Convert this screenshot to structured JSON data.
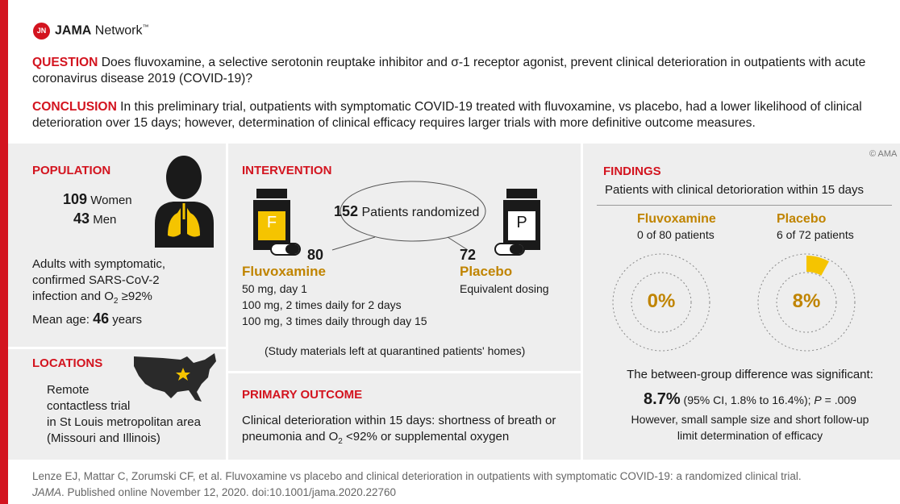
{
  "header": {
    "logo_mark": "JN",
    "brand": "JAMA",
    "brand_suffix": "Network",
    "trademark": "™"
  },
  "question": {
    "label": "QUESTION",
    "text": "Does fluvoxamine, a selective serotonin reuptake inhibitor and σ-1 receptor agonist, prevent clinical deterioration in outpatients with acute coronavirus disease 2019 (COVID-19)?"
  },
  "conclusion": {
    "label": "CONCLUSION",
    "text": "In this preliminary trial, outpatients with symptomatic COVID-19 treated with fluvoxamine, vs placebo, had a lower likelihood of clinical deterioration over 15 days; however, determination of clinical efficacy requires larger trials with more definitive outcome measures."
  },
  "copyright": "© AMA",
  "population": {
    "heading": "POPULATION",
    "women": {
      "count": "109",
      "label": "Women"
    },
    "men": {
      "count": "43",
      "label": "Men"
    },
    "description": {
      "text": "Adults with symptomatic, confirmed SARS-CoV-2 infection and O",
      "subscript": "2",
      "tail": " ≥92%"
    },
    "mean_age": {
      "label": "Mean age:",
      "value": "46",
      "unit": "years"
    }
  },
  "locations": {
    "heading": "LOCATIONS",
    "lines": [
      "Remote",
      "contactless trial",
      "in St Louis metropolitan area",
      "(Missouri and Illinois)"
    ]
  },
  "intervention": {
    "heading": "INTERVENTION",
    "randomized": {
      "count": "152",
      "label": "Patients randomized"
    },
    "fluvoxamine": {
      "bottle": "F",
      "count": "80",
      "name": "Fluvoxamine",
      "dosing": [
        "50 mg, day 1",
        "100 mg, 2 times daily for 2 days",
        "100 mg, 3 times daily through day 15"
      ]
    },
    "placebo": {
      "bottle": "P",
      "count": "72",
      "name": "Placebo",
      "dosing": [
        "Equivalent dosing"
      ]
    },
    "note": "(Study materials left at quarantined patients' homes)"
  },
  "primary_outcome": {
    "heading": "PRIMARY OUTCOME",
    "text": "Clinical deterioration within 15 days: shortness of breath or pneumonia and O",
    "subscript": "2",
    "tail": " <92% or supplemental oxygen"
  },
  "findings": {
    "heading": "FINDINGS",
    "subtitle": "Patients with clinical detorioration within 15 days",
    "fluvoxamine": {
      "name": "Fluvoxamine",
      "detail": "0 of 80 patients",
      "percent": {
        "value": 0,
        "label": "0%"
      }
    },
    "placebo": {
      "name": "Placebo",
      "detail": "6 of 72 patients",
      "percent": {
        "value": 8,
        "label": "8%"
      }
    },
    "significance": "The between-group difference was significant:",
    "difference": {
      "value": "8.7%",
      "ci": " (95% CI, 1.8% to 16.4%); ",
      "p_symbol": "P",
      "p_value": " = .009"
    },
    "limitation": "However, small sample size and short follow-up limit determination of efficacy"
  },
  "citation": {
    "authors_title": "Lenze EJ, Mattar C, Zorumski CF, et al. Fluvoxamine vs placebo and clinical deterioration in outpatients with symptomatic COVID-19: a randomized clinical trial.",
    "journal": "JAMA",
    "details": ". Published online November 12, 2020. doi:10.1001/jama.2020.22760"
  }
}
